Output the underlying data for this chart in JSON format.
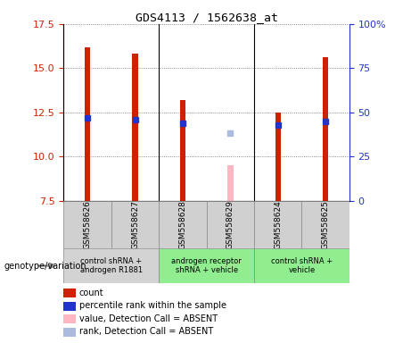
{
  "title": "GDS4113 / 1562638_at",
  "samples": [
    "GSM558626",
    "GSM558627",
    "GSM558628",
    "GSM558629",
    "GSM558624",
    "GSM558625"
  ],
  "red_values": [
    16.2,
    15.8,
    13.2,
    null,
    12.5,
    15.6
  ],
  "pink_values": [
    null,
    null,
    null,
    9.5,
    null,
    null
  ],
  "blue_marker_y": [
    12.2,
    12.1,
    11.9,
    null,
    11.8,
    12.0
  ],
  "light_blue_marker_y": [
    null,
    null,
    null,
    11.3,
    null,
    null
  ],
  "ylim_left": [
    7.5,
    17.5
  ],
  "ylim_right": [
    0,
    100
  ],
  "yticks_left": [
    7.5,
    10.0,
    12.5,
    15.0,
    17.5
  ],
  "yticks_right": [
    0,
    25,
    50,
    75,
    100
  ],
  "groups": [
    {
      "label": "control shRNA +\nandrogen R1881",
      "samples": [
        0,
        1
      ],
      "color": "#d3d3d3"
    },
    {
      "label": "androgen receptor\nshRNA + vehicle",
      "samples": [
        2,
        3
      ],
      "color": "#90ee90"
    },
    {
      "label": "control shRNA +\nvehicle",
      "samples": [
        4,
        5
      ],
      "color": "#90ee90"
    }
  ],
  "bar_width": 0.12,
  "red_color": "#cc2200",
  "pink_color": "#ffb6c1",
  "blue_color": "#2233cc",
  "light_blue_color": "#aabbdd",
  "grid_color": "#666666",
  "sample_bg_color": "#d0d0d0",
  "group1_color": "#d0d0d0",
  "group2_color": "#90ee90",
  "group3_color": "#90ee90",
  "left_axis_color": "#cc2200",
  "right_axis_color": "#2233cc",
  "genotype_label": "genotype/variation"
}
